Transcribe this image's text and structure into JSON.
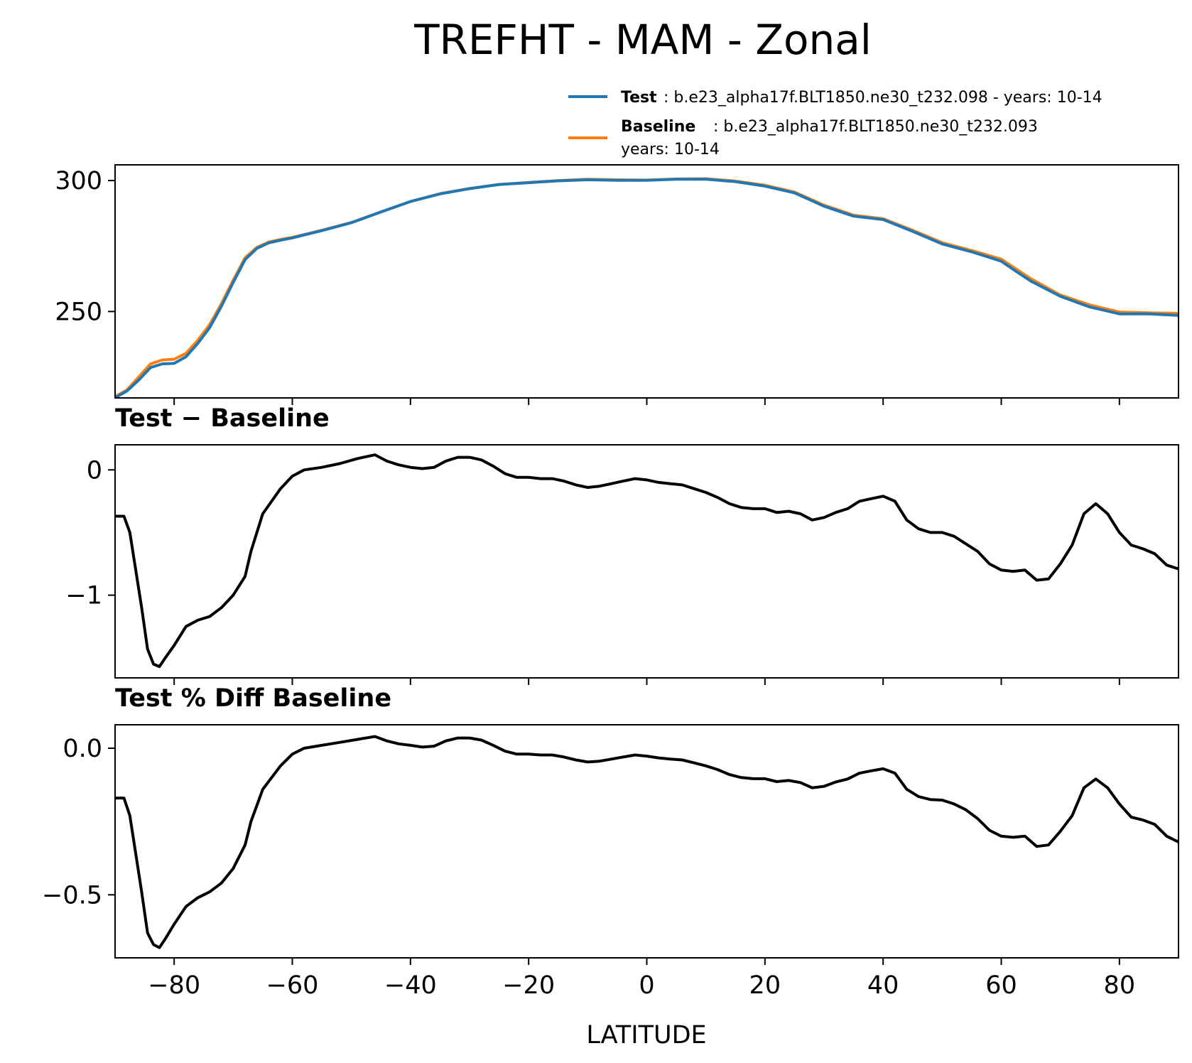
{
  "title": "TREFHT - MAM - Zonal",
  "legend": {
    "test": {
      "label": "Test",
      "text": ": b.e23_alpha17f.BLT1850.ne30_t232.098 - years: 10-14",
      "color": "#1f77b4"
    },
    "baseline": {
      "label": "Baseline",
      "text": ": b.e23_alpha17f.BLT1850.ne30_t232.093",
      "text2": "years: 10-14",
      "color": "#ff7f0e"
    }
  },
  "chart_data": [
    {
      "type": "line",
      "title": "",
      "xlabel": "",
      "ylabel": "",
      "xlim": [
        -90,
        90
      ],
      "ylim": [
        217,
        306
      ],
      "yticks": [
        250,
        300
      ],
      "ytick_labels": [
        "250",
        "300"
      ],
      "series": [
        {
          "name": "Baseline",
          "color": "#ff7f0e",
          "x": [
            -90,
            -88,
            -86,
            -84,
            -82,
            -80,
            -78,
            -76,
            -74,
            -72,
            -70,
            -68,
            -66,
            -64,
            -62,
            -60,
            -55,
            -50,
            -45,
            -40,
            -35,
            -30,
            -25,
            -20,
            -15,
            -10,
            -5,
            0,
            5,
            10,
            15,
            20,
            25,
            30,
            35,
            40,
            45,
            50,
            55,
            60,
            62,
            65,
            70,
            75,
            80,
            85,
            90
          ],
          "y": [
            217.5,
            220,
            225,
            230,
            231.5,
            231.8,
            234,
            239,
            245,
            253,
            262,
            270.5,
            274.5,
            276.5,
            277.5,
            278.3,
            281,
            284,
            288,
            292,
            295,
            297,
            298.5,
            299.3,
            300,
            300.5,
            300.3,
            300.2,
            300.6,
            300.7,
            299.8,
            298.2,
            295.6,
            290.6,
            286.8,
            285.4,
            281,
            276.3,
            273.3,
            270,
            267,
            262.5,
            256.3,
            252.5,
            249.8,
            249.5,
            249.3
          ]
        },
        {
          "name": "Test",
          "color": "#1f77b4",
          "x": [
            -90,
            -88,
            -86,
            -84,
            -82,
            -80,
            -78,
            -76,
            -74,
            -72,
            -70,
            -68,
            -66,
            -64,
            -62,
            -60,
            -55,
            -50,
            -45,
            -40,
            -35,
            -30,
            -25,
            -20,
            -15,
            -10,
            -5,
            0,
            5,
            10,
            15,
            20,
            25,
            30,
            35,
            40,
            45,
            50,
            55,
            60,
            62,
            65,
            70,
            75,
            80,
            85,
            90
          ],
          "y": [
            217.1,
            219.6,
            223.8,
            228.6,
            230,
            230.2,
            232.7,
            237.8,
            243.8,
            252,
            261.1,
            269.8,
            274.1,
            276.2,
            277.2,
            278.1,
            280.9,
            283.9,
            288,
            292,
            294.9,
            296.9,
            298.5,
            299.2,
            299.9,
            300.3,
            300.1,
            300.1,
            300.5,
            300.5,
            299.6,
            297.9,
            295.3,
            290.2,
            286.4,
            285.1,
            280.6,
            275.8,
            272.8,
            269.2,
            266.1,
            261.6,
            255.8,
            251.7,
            249.1,
            249.1,
            248.5
          ]
        }
      ]
    },
    {
      "type": "line",
      "title": "Test − Baseline",
      "xlabel": "",
      "ylabel": "",
      "xlim": [
        -90,
        90
      ],
      "ylim": [
        -1.66,
        0.2
      ],
      "yticks": [
        -1,
        0
      ],
      "ytick_labels": [
        "−1",
        "0"
      ],
      "series": [
        {
          "name": "Test - Baseline",
          "color": "#000000",
          "x": [
            -90,
            -88.5,
            -87.5,
            -86.5,
            -85.5,
            -84.5,
            -83.5,
            -82.5,
            -81.5,
            -80,
            -78,
            -76,
            -74,
            -72,
            -70,
            -68,
            -67,
            -65,
            -63.5,
            -62,
            -60,
            -58,
            -55,
            -52,
            -49,
            -46,
            -44,
            -42,
            -40,
            -38,
            -36,
            -34,
            -32,
            -30,
            -28,
            -26,
            -24,
            -22,
            -20,
            -18,
            -16,
            -14,
            -12,
            -10,
            -8,
            -6,
            -4,
            -2,
            0,
            2,
            4,
            6,
            8,
            10,
            12,
            14,
            16,
            18,
            20,
            22,
            24,
            26,
            28,
            30,
            32,
            34,
            36,
            38,
            40,
            42,
            44,
            46,
            48,
            50,
            52,
            54,
            56,
            58,
            60,
            62,
            64,
            66,
            68,
            70,
            72,
            74,
            76,
            78,
            80,
            82,
            84,
            86,
            88,
            90
          ],
          "y": [
            -0.37,
            -0.37,
            -0.5,
            -0.8,
            -1.1,
            -1.43,
            -1.55,
            -1.57,
            -1.5,
            -1.4,
            -1.25,
            -1.2,
            -1.17,
            -1.1,
            -1.0,
            -0.85,
            -0.65,
            -0.35,
            -0.25,
            -0.15,
            -0.05,
            0.0,
            0.02,
            0.05,
            0.09,
            0.12,
            0.07,
            0.04,
            0.02,
            0.01,
            0.02,
            0.07,
            0.1,
            0.1,
            0.08,
            0.03,
            -0.03,
            -0.06,
            -0.06,
            -0.07,
            -0.07,
            -0.09,
            -0.12,
            -0.14,
            -0.13,
            -0.11,
            -0.09,
            -0.07,
            -0.08,
            -0.1,
            -0.11,
            -0.12,
            -0.15,
            -0.18,
            -0.22,
            -0.27,
            -0.3,
            -0.31,
            -0.31,
            -0.34,
            -0.33,
            -0.35,
            -0.4,
            -0.38,
            -0.34,
            -0.31,
            -0.25,
            -0.23,
            -0.21,
            -0.25,
            -0.4,
            -0.47,
            -0.5,
            -0.5,
            -0.53,
            -0.59,
            -0.65,
            -0.75,
            -0.8,
            -0.81,
            -0.8,
            -0.88,
            -0.87,
            -0.75,
            -0.6,
            -0.35,
            -0.27,
            -0.35,
            -0.5,
            -0.6,
            -0.63,
            -0.67,
            -0.76,
            -0.79
          ]
        }
      ]
    },
    {
      "type": "line",
      "title": "Test % Diff Baseline",
      "xlabel": "LATITUDE",
      "ylabel": "",
      "xlim": [
        -90,
        90
      ],
      "ylim": [
        -0.715,
        0.08
      ],
      "xticks": [
        -80,
        -60,
        -40,
        -20,
        0,
        20,
        40,
        60,
        80
      ],
      "xtick_labels": [
        "−80",
        "−60",
        "−40",
        "−20",
        "0",
        "20",
        "40",
        "60",
        "80"
      ],
      "yticks": [
        -0.5,
        0.0
      ],
      "ytick_labels": [
        "−0.5",
        "0.0"
      ],
      "series": [
        {
          "name": "Test % Diff Baseline",
          "color": "#000000",
          "x": [
            -90,
            -88.5,
            -87.5,
            -86.5,
            -85.5,
            -84.5,
            -83.5,
            -82.5,
            -81.5,
            -80,
            -78,
            -76,
            -74,
            -72,
            -70,
            -68,
            -67,
            -65,
            -63.5,
            -62,
            -60,
            -58,
            -55,
            -52,
            -49,
            -46,
            -44,
            -42,
            -40,
            -38,
            -36,
            -34,
            -32,
            -30,
            -28,
            -26,
            -24,
            -22,
            -20,
            -18,
            -16,
            -14,
            -12,
            -10,
            -8,
            -6,
            -4,
            -2,
            0,
            2,
            4,
            6,
            8,
            10,
            12,
            14,
            16,
            18,
            20,
            22,
            24,
            26,
            28,
            30,
            32,
            34,
            36,
            38,
            40,
            42,
            44,
            46,
            48,
            50,
            52,
            54,
            56,
            58,
            60,
            62,
            64,
            66,
            68,
            70,
            72,
            74,
            76,
            78,
            80,
            82,
            84,
            86,
            88,
            90
          ],
          "y": [
            -0.17,
            -0.17,
            -0.23,
            -0.36,
            -0.49,
            -0.63,
            -0.67,
            -0.68,
            -0.65,
            -0.6,
            -0.54,
            -0.51,
            -0.49,
            -0.46,
            -0.41,
            -0.33,
            -0.25,
            -0.14,
            -0.1,
            -0.06,
            -0.02,
            0.0,
            0.01,
            0.02,
            0.03,
            0.04,
            0.025,
            0.015,
            0.01,
            0.004,
            0.007,
            0.025,
            0.035,
            0.035,
            0.028,
            0.01,
            -0.01,
            -0.02,
            -0.02,
            -0.023,
            -0.023,
            -0.03,
            -0.04,
            -0.047,
            -0.044,
            -0.037,
            -0.03,
            -0.023,
            -0.027,
            -0.033,
            -0.037,
            -0.04,
            -0.05,
            -0.06,
            -0.073,
            -0.09,
            -0.1,
            -0.104,
            -0.104,
            -0.114,
            -0.11,
            -0.117,
            -0.135,
            -0.13,
            -0.115,
            -0.105,
            -0.085,
            -0.077,
            -0.07,
            -0.085,
            -0.14,
            -0.165,
            -0.175,
            -0.177,
            -0.19,
            -0.21,
            -0.24,
            -0.28,
            -0.3,
            -0.304,
            -0.3,
            -0.335,
            -0.33,
            -0.283,
            -0.23,
            -0.135,
            -0.105,
            -0.135,
            -0.19,
            -0.235,
            -0.245,
            -0.26,
            -0.3,
            -0.32
          ]
        }
      ]
    }
  ]
}
